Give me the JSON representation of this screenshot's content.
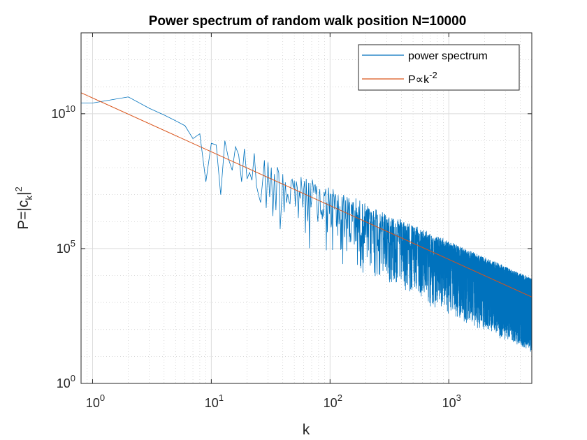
{
  "chart_data": {
    "type": "line",
    "title": "Power spectrum of random walk position N=10000",
    "xlabel": "k",
    "ylabel": {
      "base": "P=|c",
      "sub": "k",
      "end": "|",
      "sup": "2"
    },
    "xscale": "log",
    "yscale": "log",
    "xlim": [
      0.8,
      5000
    ],
    "ylim": [
      1,
      10000000000000
    ],
    "grid": true,
    "minor_grid": true,
    "legend_position": "top-right",
    "x_ticks": [
      {
        "base": "10",
        "exp": "0",
        "value": 1
      },
      {
        "base": "10",
        "exp": "1",
        "value": 10
      },
      {
        "base": "10",
        "exp": "2",
        "value": 100
      },
      {
        "base": "10",
        "exp": "3",
        "value": 1000
      }
    ],
    "y_ticks": [
      {
        "base": "10",
        "exp": "0",
        "value": 1
      },
      {
        "base": "10",
        "exp": "5",
        "value": 100000
      },
      {
        "base": "10",
        "exp": "10",
        "value": 10000000000
      }
    ],
    "series": [
      {
        "name": "power spectrum",
        "color": "#0072BD",
        "style": "noisy",
        "points": [
          [
            0.8,
            25000000000.0
          ],
          [
            1,
            25000000000.0
          ],
          [
            2,
            42000000000.0
          ],
          [
            3,
            16000000000.0
          ],
          [
            4,
            9000000000.0
          ],
          [
            5,
            5500000000.0
          ],
          [
            6,
            3600000000.0
          ],
          [
            7,
            1200000000.0
          ],
          [
            8,
            1800000000.0
          ],
          [
            9,
            30000000.0
          ],
          [
            10,
            800000000.0
          ],
          [
            11,
            700000000.0
          ],
          [
            12,
            10000000.0
          ],
          [
            13,
            1000000000.0
          ],
          [
            14,
            200000000.0
          ],
          [
            15,
            80000000.0
          ],
          [
            16,
            600000000.0
          ],
          [
            17,
            300000000.0
          ],
          [
            18,
            30000000.0
          ],
          [
            19,
            500000000.0
          ],
          [
            20,
            300000000.0
          ],
          [
            22,
            250000000.0
          ],
          [
            25,
            150000000.0
          ],
          [
            30,
            120000000.0
          ],
          [
            40,
            80000000.0
          ],
          [
            50,
            40000000.0
          ],
          [
            70,
            20000000.0
          ],
          [
            100,
            10000000.0
          ],
          [
            200,
            2500000.0
          ],
          [
            500,
            400000.0
          ],
          [
            1000,
            100000.0
          ],
          [
            2000,
            25000.0
          ],
          [
            5000,
            4000.0
          ]
        ],
        "noise_start": 20,
        "noise_down_decades": [
          0,
          2.5
        ]
      },
      {
        "name": "P∝k",
        "name_sup": "-2",
        "color": "#D95319",
        "style": "line",
        "points": [
          [
            0.8,
            60000000000.0
          ],
          [
            5000,
            1600.0
          ]
        ]
      }
    ]
  }
}
